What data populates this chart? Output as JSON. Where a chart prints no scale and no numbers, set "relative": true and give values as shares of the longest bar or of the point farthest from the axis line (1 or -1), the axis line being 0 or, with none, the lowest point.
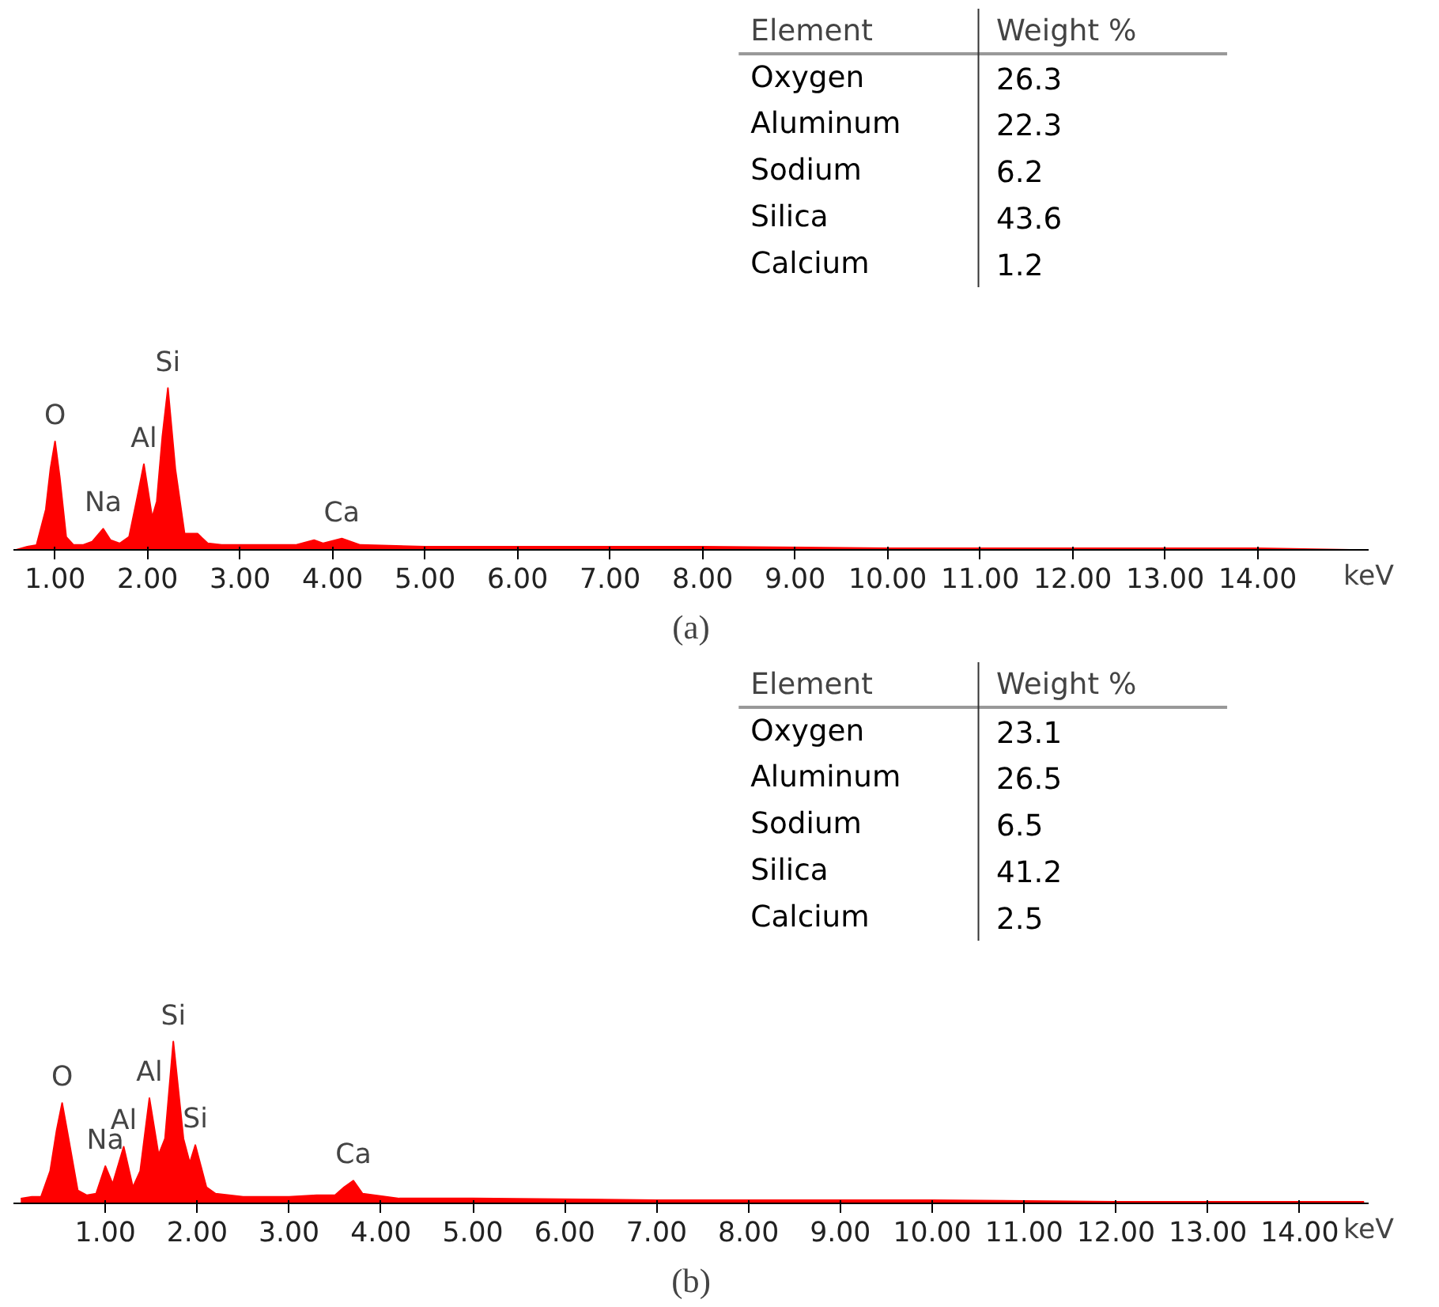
{
  "chart_data": [
    {
      "type": "other",
      "xlabel": "Element",
      "ylabel": "Weight %",
      "categories": [
        "Oxygen",
        "Aluminum",
        "Sodium",
        "Silica",
        "Calcium"
      ],
      "values": [
        26.3,
        22.3,
        6.2,
        43.6,
        1.2
      ],
      "data_labels": true
    },
    {
      "type": "area",
      "title": "(a)",
      "xlabel": "keV",
      "relative": true,
      "color": "#ff0000",
      "grid": false,
      "tick_labels": "x",
      "x": [
        0.58,
        0.7,
        0.8,
        0.9,
        0.95,
        1.0,
        1.05,
        1.12,
        1.2,
        1.3,
        1.4,
        1.52,
        1.6,
        1.7,
        1.8,
        1.88,
        1.96,
        2.05,
        2.1,
        2.16,
        2.22,
        2.3,
        2.4,
        2.54,
        2.65,
        2.8,
        3.2,
        3.6,
        3.8,
        3.9,
        4.1,
        4.3,
        5.0,
        6.0,
        7.0,
        8.0,
        10.0,
        12.0,
        14.0,
        15.0
      ],
      "values": [
        0,
        0.02,
        0.03,
        0.25,
        0.5,
        0.67,
        0.45,
        0.08,
        0.03,
        0.03,
        0.05,
        0.13,
        0.06,
        0.04,
        0.08,
        0.3,
        0.53,
        0.2,
        0.3,
        0.7,
        1.0,
        0.5,
        0.1,
        0.1,
        0.04,
        0.03,
        0.03,
        0.03,
        0.06,
        0.04,
        0.07,
        0.03,
        0.02,
        0.02,
        0.02,
        0.02,
        0.01,
        0.01,
        0.01,
        0
      ],
      "xlim": [
        0.55,
        15.2
      ],
      "xticks": [
        {
          "value": 1,
          "label": "1.00"
        },
        {
          "value": 2,
          "label": "2.00"
        },
        {
          "value": 3,
          "label": "3.00"
        },
        {
          "value": 4,
          "label": "4.00"
        },
        {
          "value": 5,
          "label": "5.00"
        },
        {
          "value": 6,
          "label": "6.00"
        },
        {
          "value": 7,
          "label": "7.00"
        },
        {
          "value": 8,
          "label": "8.00"
        },
        {
          "value": 9,
          "label": "9.00"
        },
        {
          "value": 10,
          "label": "10.00"
        },
        {
          "value": 11,
          "label": "11.00"
        },
        {
          "value": 12,
          "label": "12.00"
        },
        {
          "value": 13,
          "label": "13.00"
        },
        {
          "value": 14,
          "label": "14.00"
        }
      ],
      "annotations": [
        {
          "text": "O",
          "x": 1.0,
          "y": 0.67
        },
        {
          "text": "Na",
          "x": 1.52,
          "y": 0.13
        },
        {
          "text": "Al",
          "x": 1.96,
          "y": 0.53
        },
        {
          "text": "Si",
          "x": 2.22,
          "y": 1.0
        },
        {
          "text": "Ca",
          "x": 4.1,
          "y": 0.07
        }
      ]
    },
    {
      "type": "other",
      "xlabel": "Element",
      "ylabel": "Weight %",
      "categories": [
        "Oxygen",
        "Aluminum",
        "Sodium",
        "Silica",
        "Calcium"
      ],
      "values": [
        23.1,
        26.5,
        6.5,
        41.2,
        2.5
      ],
      "data_labels": true
    },
    {
      "type": "area",
      "title": "(b)",
      "xlabel": "keV",
      "relative": true,
      "color": "#ff0000",
      "grid": false,
      "tick_labels": "x",
      "x": [
        0.08,
        0.2,
        0.3,
        0.4,
        0.47,
        0.53,
        0.6,
        0.7,
        0.8,
        0.9,
        1.0,
        1.08,
        1.2,
        1.3,
        1.38,
        1.48,
        1.58,
        1.65,
        1.74,
        1.85,
        1.92,
        1.98,
        2.1,
        2.2,
        2.5,
        3.0,
        3.3,
        3.5,
        3.6,
        3.7,
        3.8,
        4.2,
        5.0,
        7.0,
        10.0,
        12.0,
        14.7
      ],
      "values": [
        0.03,
        0.04,
        0.04,
        0.2,
        0.45,
        0.62,
        0.4,
        0.08,
        0.05,
        0.06,
        0.23,
        0.12,
        0.35,
        0.1,
        0.2,
        0.65,
        0.3,
        0.4,
        1.0,
        0.4,
        0.25,
        0.36,
        0.1,
        0.06,
        0.04,
        0.04,
        0.05,
        0.05,
        0.1,
        0.14,
        0.06,
        0.03,
        0.03,
        0.02,
        0.02,
        0.01,
        0.01
      ],
      "xlim": [
        0,
        14.75
      ],
      "xticks": [
        {
          "value": 1,
          "label": "1.00"
        },
        {
          "value": 2,
          "label": "2.00"
        },
        {
          "value": 3,
          "label": "3.00"
        },
        {
          "value": 4,
          "label": "4.00"
        },
        {
          "value": 5,
          "label": "5.00"
        },
        {
          "value": 6,
          "label": "6.00"
        },
        {
          "value": 7,
          "label": "7.00"
        },
        {
          "value": 8,
          "label": "8.00"
        },
        {
          "value": 9,
          "label": "9.00"
        },
        {
          "value": 10,
          "label": "10.00"
        },
        {
          "value": 11,
          "label": "11.00"
        },
        {
          "value": 12,
          "label": "12.00"
        },
        {
          "value": 13,
          "label": "13.00"
        },
        {
          "value": 14,
          "label": "14.00"
        }
      ],
      "annotations": [
        {
          "text": "O",
          "x": 0.53,
          "y": 0.62
        },
        {
          "text": "Na",
          "x": 1.0,
          "y": 0.23
        },
        {
          "text": "Al",
          "x": 1.2,
          "y": 0.35
        },
        {
          "text": "Al",
          "x": 1.48,
          "y": 0.65
        },
        {
          "text": "Si",
          "x": 1.74,
          "y": 1.0
        },
        {
          "text": "Si",
          "x": 1.98,
          "y": 0.36
        },
        {
          "text": "Ca",
          "x": 3.7,
          "y": 0.14
        }
      ]
    }
  ]
}
